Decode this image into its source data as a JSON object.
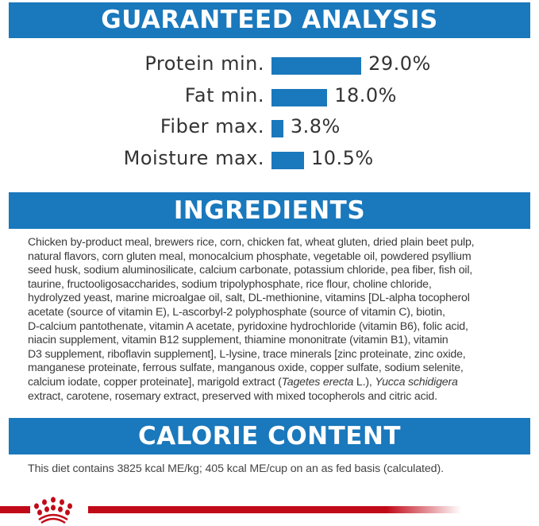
{
  "guaranteed_analysis": {
    "title": "GUARANTEED ANALYSIS",
    "bar_color": "#1a78bc",
    "items": [
      {
        "label": "Protein min.",
        "value_text": "29.0%",
        "value": 29.0
      },
      {
        "label": "Fat min.",
        "value_text": "18.0%",
        "value": 18.0
      },
      {
        "label": "Fiber max.",
        "value_text": "3.8%",
        "value": 3.8
      },
      {
        "label": "Moisture max.",
        "value_text": "10.5%",
        "value": 10.5
      }
    ]
  },
  "ingredients": {
    "title": "INGREDIENTS",
    "lines": [
      "Chicken by-product meal, brewers rice, corn, chicken fat, wheat gluten, dried plain beet pulp,",
      "natural flavors, corn gluten meal, monocalcium phosphate, vegetable oil, powdered psyllium",
      "seed husk, sodium aluminosilicate, calcium carbonate, potassium chloride, pea fiber, fish oil,",
      "taurine, fructooligosaccharides, sodium tripolyphosphate, rice flour, choline chloride,",
      "hydrolyzed yeast, marine microalgae oil, salt, DL-methionine, vitamins [DL-alpha tocopherol",
      "acetate (source of vitamin E), L-ascorbyl-2 polyphosphate (source of vitamin C), biotin,",
      "D-calcium pantothenate, vitamin A acetate, pyridoxine hydrochloride (vitamin B6), folic acid,",
      "niacin supplement, vitamin B12 supplement, thiamine mononitrate (vitamin B1), vitamin",
      "D3 supplement, riboflavin supplement], L-lysine, trace minerals [zinc proteinate, zinc oxide,",
      "manganese proteinate, ferrous sulfate, manganous oxide, copper sulfate, sodium selenite,"
    ],
    "line11": {
      "a": "calcium iodate, copper proteinate], marigold extract (",
      "b": "Tagetes erecta",
      "c": " L.), ",
      "d": "Yucca schidigera"
    },
    "line12": "extract, carotene, rosemary extract, preserved with mixed tocopherols and citric acid."
  },
  "calorie_content": {
    "title": "CALORIE CONTENT",
    "text": "This diet contains 3825 kcal ME/kg; 405 kcal ME/cup on an as fed basis (calculated)."
  },
  "brand": {
    "logo": "royal-canin-crown-logo",
    "accent_color": "#c10a18"
  }
}
